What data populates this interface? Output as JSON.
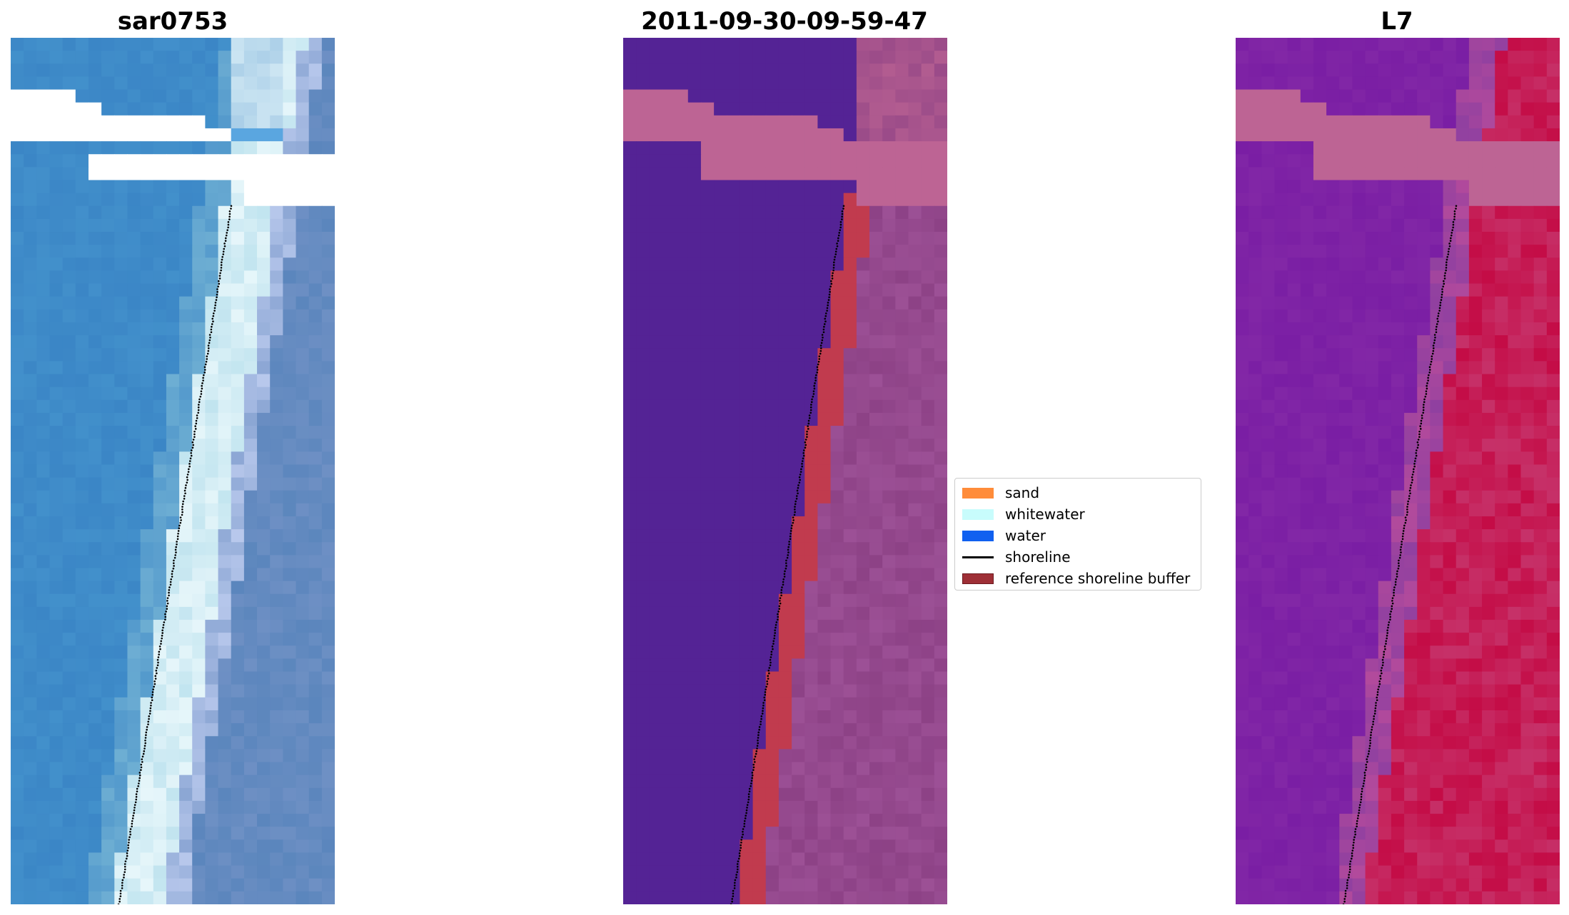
{
  "panels": [
    {
      "title": "sar0753",
      "kind": "rgb"
    },
    {
      "title": "2011-09-30-09-59-47",
      "kind": "classified"
    },
    {
      "title": "L7",
      "kind": "index"
    }
  ],
  "legend": {
    "items": [
      {
        "label": "sand",
        "color": "#ff8c3a",
        "type": "patch"
      },
      {
        "label": "whitewater",
        "color": "#c8fcfc",
        "type": "patch"
      },
      {
        "label": "water",
        "color": "#1060f0",
        "type": "patch"
      },
      {
        "label": "shoreline",
        "color": "#000000",
        "type": "line"
      },
      {
        "label": "reference shoreline buffer",
        "color": "#9e2f36",
        "type": "patch"
      }
    ]
  },
  "colors": {
    "rgb_water": "#3b86c6",
    "rgb_whitewater": "#e6f6fa",
    "rgb_sand": "#6e90c4",
    "class_water": "#542395",
    "class_buffer": "#c13b4e",
    "class_land": "#8a3f83",
    "mask_pink": "#bd6494",
    "index_low": "#7a1ea4",
    "index_high": "#c40c46",
    "shoreline": "#000000"
  }
}
